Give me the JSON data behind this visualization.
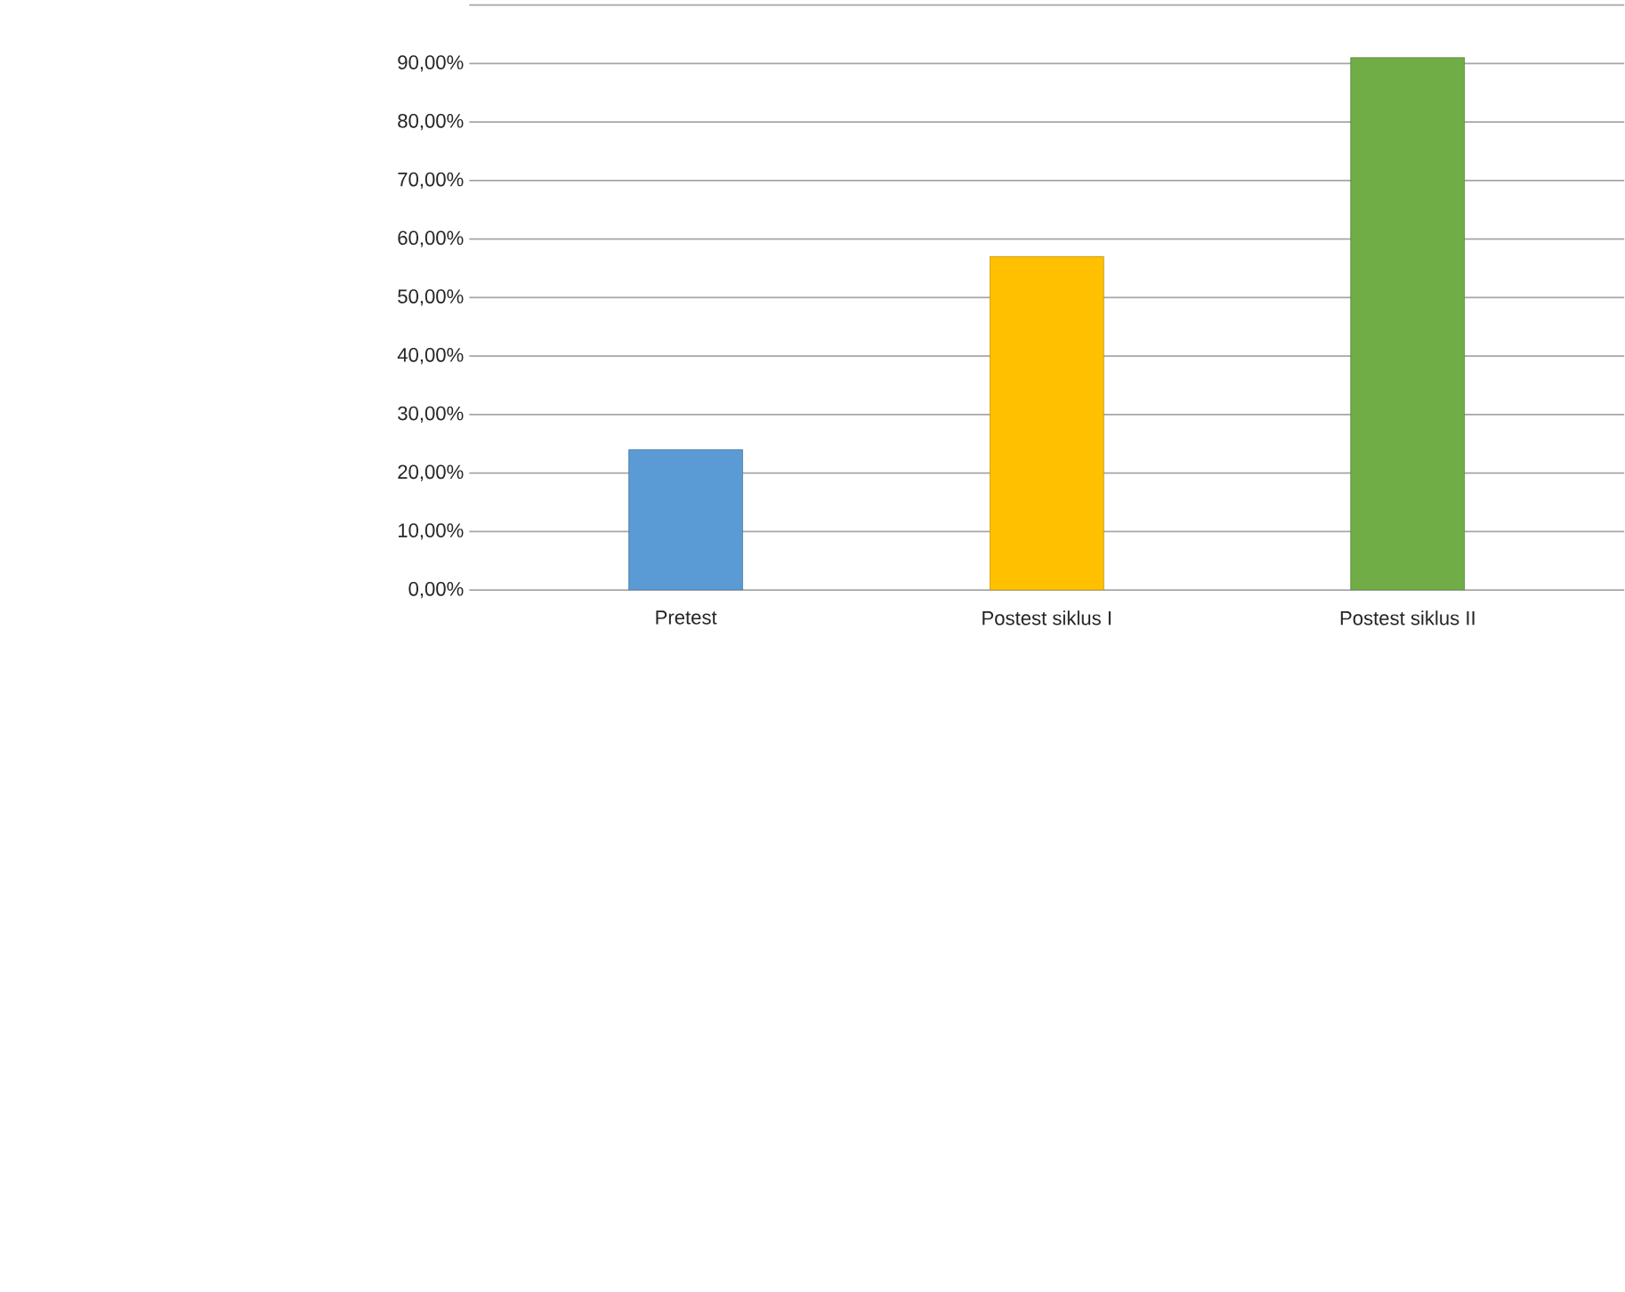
{
  "chart_data": {
    "type": "bar",
    "categories": [
      "Pretest",
      "Postest siklus I",
      "Postest siklus II"
    ],
    "values": [
      24,
      57,
      91
    ],
    "colors": [
      "#5b9bd5",
      "#ffc000",
      "#70ad47"
    ],
    "ylim": [
      0,
      100
    ],
    "yticks": [
      {
        "value": 0,
        "label": "0,00%"
      },
      {
        "value": 10,
        "label": "10,00%"
      },
      {
        "value": 20,
        "label": "20,00%"
      },
      {
        "value": 30,
        "label": "30,00%"
      },
      {
        "value": 40,
        "label": "40,00%"
      },
      {
        "value": 50,
        "label": "50,00%"
      },
      {
        "value": 60,
        "label": "60,00%"
      },
      {
        "value": 70,
        "label": "70,00%"
      },
      {
        "value": 80,
        "label": "80,00%"
      },
      {
        "value": 90,
        "label": "90,00%"
      },
      {
        "value": 100,
        "label": null
      }
    ],
    "grid": true
  }
}
